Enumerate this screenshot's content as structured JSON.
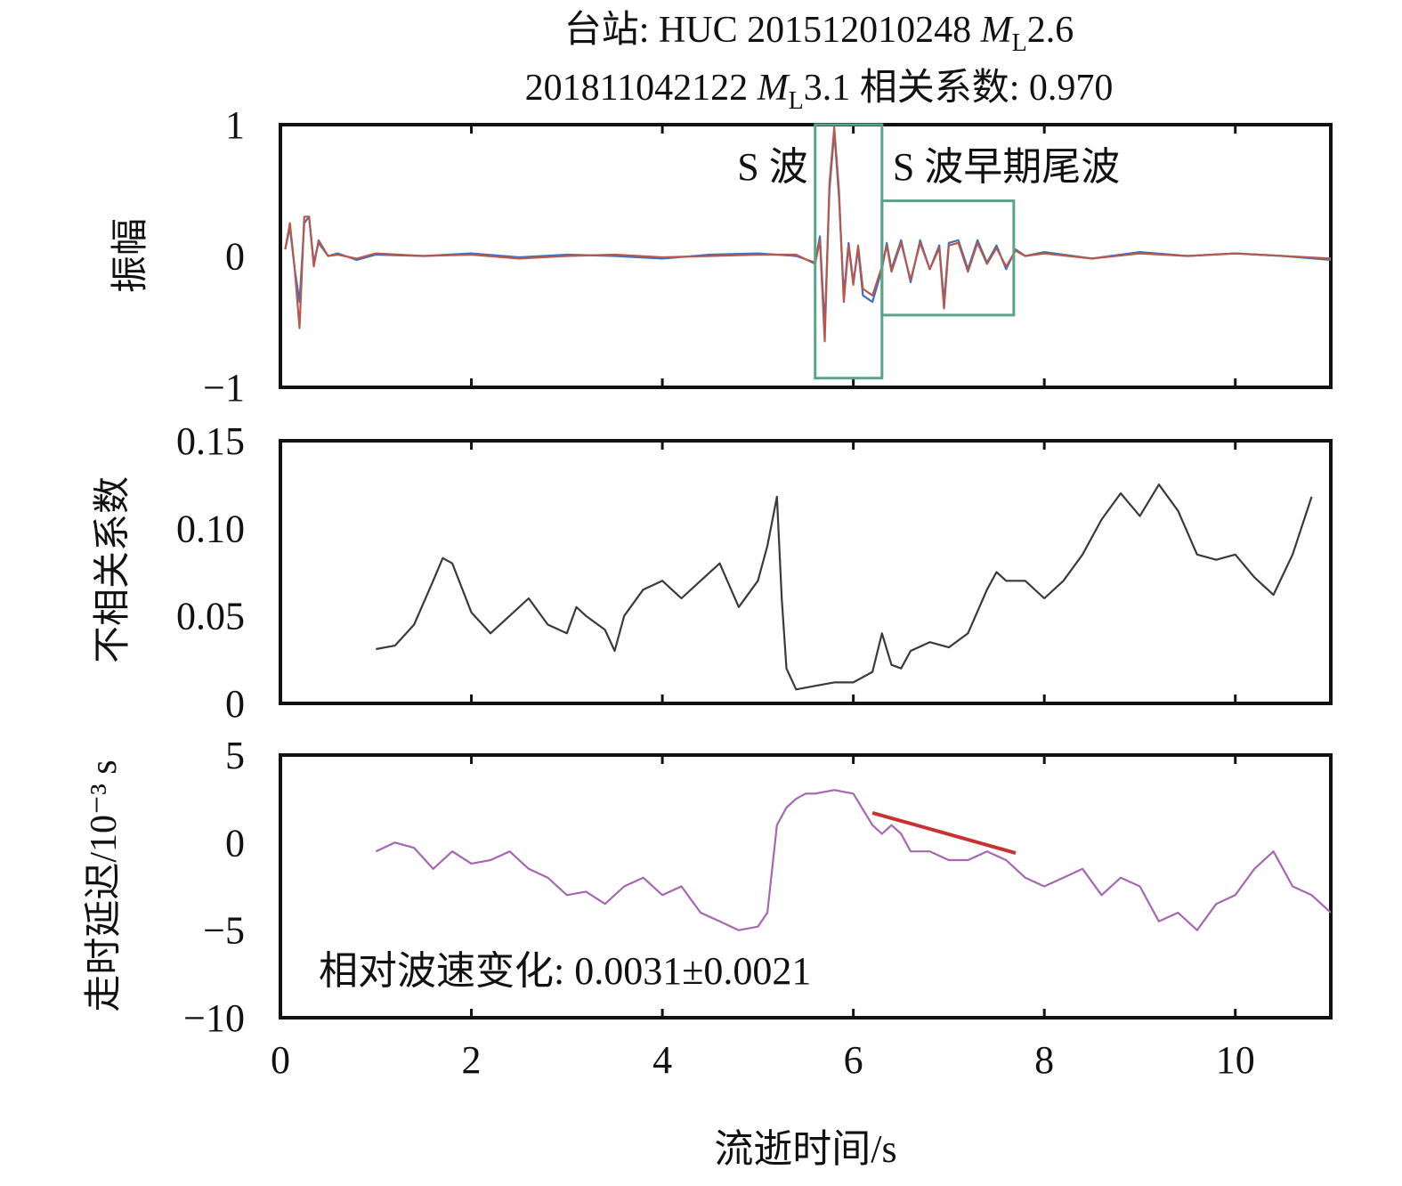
{
  "title": {
    "line1_prefix": "台站: HUC 201512010248 ",
    "line1_M": "M",
    "line1_sub": "L",
    "line1_val": "2.6",
    "line2_prefix": "201811042122 ",
    "line2_M": "M",
    "line2_sub": "L",
    "line2_val": "3.1 相关系数: 0.970"
  },
  "xlabel": "流逝时间/s",
  "chart_data": [
    {
      "type": "line",
      "ylabel": "振幅",
      "xlim": [
        0,
        11
      ],
      "ylim": [
        -1,
        1
      ],
      "yticks": [
        1,
        0,
        -1
      ],
      "ytick_labels": [
        "1",
        "0",
        "−1"
      ],
      "xticks": [
        0,
        2,
        4,
        6,
        8,
        10
      ],
      "annotations": [
        {
          "text": "S 波",
          "x_range": [
            5.6,
            6.3
          ],
          "y_range": [
            -0.93,
            1.0
          ]
        },
        {
          "text": "S 波早期尾波",
          "x_range": [
            6.3,
            7.68
          ],
          "y_range": [
            -0.45,
            0.42
          ]
        }
      ],
      "series": [
        {
          "color": "#3d6fc4",
          "x": [
            0.05,
            0.1,
            0.15,
            0.2,
            0.25,
            0.3,
            0.35,
            0.4,
            0.5,
            0.6,
            0.8,
            1.0,
            1.5,
            2.0,
            2.5,
            3.0,
            3.5,
            4.0,
            4.5,
            5.0,
            5.4,
            5.6,
            5.65,
            5.7,
            5.75,
            5.8,
            5.85,
            5.9,
            5.95,
            6.0,
            6.05,
            6.1,
            6.2,
            6.3,
            6.35,
            6.4,
            6.5,
            6.6,
            6.7,
            6.8,
            6.9,
            6.95,
            7.0,
            7.1,
            7.2,
            7.3,
            7.4,
            7.5,
            7.6,
            7.7,
            7.8,
            8.0,
            8.5,
            9.0,
            9.5,
            10.0,
            10.5,
            11.0
          ],
          "y": [
            0.05,
            0.22,
            -0.1,
            -0.35,
            0.25,
            0.3,
            -0.05,
            0.1,
            0.0,
            0.02,
            -0.03,
            0.01,
            0.0,
            0.02,
            -0.01,
            0.01,
            0.0,
            -0.02,
            0.01,
            0.02,
            0.0,
            -0.05,
            0.15,
            -0.55,
            0.5,
            0.95,
            0.45,
            -0.3,
            0.1,
            -0.2,
            0.05,
            -0.3,
            -0.35,
            -0.1,
            0.1,
            -0.1,
            0.12,
            -0.2,
            0.12,
            -0.1,
            0.08,
            -0.35,
            0.1,
            0.12,
            -0.1,
            0.12,
            -0.05,
            0.08,
            -0.1,
            0.05,
            0.0,
            0.03,
            -0.02,
            0.03,
            0.0,
            0.02,
            0.0,
            -0.03
          ]
        },
        {
          "color": "#b5594f",
          "x": [
            0.05,
            0.1,
            0.15,
            0.2,
            0.25,
            0.3,
            0.35,
            0.4,
            0.5,
            0.6,
            0.8,
            1.0,
            1.5,
            2.0,
            2.5,
            3.0,
            3.5,
            4.0,
            4.5,
            5.0,
            5.4,
            5.6,
            5.65,
            5.7,
            5.75,
            5.8,
            5.85,
            5.9,
            5.95,
            6.0,
            6.05,
            6.1,
            6.2,
            6.3,
            6.35,
            6.4,
            6.5,
            6.6,
            6.7,
            6.8,
            6.9,
            6.95,
            7.0,
            7.1,
            7.2,
            7.3,
            7.4,
            7.5,
            7.6,
            7.7,
            7.8,
            8.0,
            8.5,
            9.0,
            9.5,
            10.0,
            10.5,
            11.0
          ],
          "y": [
            0.05,
            0.25,
            -0.1,
            -0.55,
            0.3,
            0.3,
            -0.08,
            0.12,
            0.0,
            0.01,
            -0.02,
            0.02,
            0.0,
            0.01,
            -0.02,
            0.0,
            0.01,
            -0.01,
            0.0,
            0.01,
            0.01,
            -0.06,
            0.12,
            -0.65,
            0.55,
            0.98,
            0.5,
            -0.35,
            0.08,
            -0.22,
            0.08,
            -0.25,
            -0.3,
            -0.08,
            0.08,
            -0.12,
            0.1,
            -0.18,
            0.1,
            -0.1,
            0.06,
            -0.4,
            0.08,
            0.1,
            -0.12,
            0.1,
            -0.06,
            0.06,
            -0.08,
            0.04,
            0.0,
            0.02,
            -0.02,
            0.02,
            0.0,
            0.02,
            0.0,
            -0.02
          ]
        }
      ]
    },
    {
      "type": "line",
      "ylabel": "不相关系数",
      "xlim": [
        0,
        11
      ],
      "ylim": [
        0,
        0.15
      ],
      "yticks": [
        0.15,
        0.1,
        0.05,
        0
      ],
      "ytick_labels": [
        "0.15",
        "0.10",
        "0.05",
        "0"
      ],
      "xticks": [
        0,
        2,
        4,
        6,
        8,
        10
      ],
      "series": [
        {
          "color": "#3a3a3a",
          "x": [
            1.0,
            1.2,
            1.4,
            1.6,
            1.7,
            1.8,
            2.0,
            2.2,
            2.4,
            2.6,
            2.8,
            3.0,
            3.1,
            3.2,
            3.4,
            3.5,
            3.6,
            3.8,
            4.0,
            4.2,
            4.4,
            4.6,
            4.8,
            5.0,
            5.1,
            5.2,
            5.25,
            5.3,
            5.4,
            5.6,
            5.8,
            6.0,
            6.2,
            6.3,
            6.4,
            6.5,
            6.6,
            6.8,
            7.0,
            7.2,
            7.4,
            7.5,
            7.6,
            7.8,
            8.0,
            8.2,
            8.4,
            8.6,
            8.8,
            9.0,
            9.2,
            9.4,
            9.6,
            9.8,
            10.0,
            10.2,
            10.4,
            10.6,
            10.8
          ],
          "y": [
            0.031,
            0.033,
            0.045,
            0.07,
            0.083,
            0.08,
            0.052,
            0.04,
            0.05,
            0.06,
            0.045,
            0.04,
            0.055,
            0.05,
            0.042,
            0.03,
            0.05,
            0.065,
            0.07,
            0.06,
            0.07,
            0.08,
            0.055,
            0.07,
            0.09,
            0.118,
            0.06,
            0.02,
            0.008,
            0.01,
            0.012,
            0.012,
            0.018,
            0.04,
            0.022,
            0.02,
            0.03,
            0.035,
            0.032,
            0.04,
            0.065,
            0.075,
            0.07,
            0.07,
            0.06,
            0.07,
            0.085,
            0.105,
            0.12,
            0.107,
            0.125,
            0.11,
            0.085,
            0.082,
            0.085,
            0.072,
            0.062,
            0.085,
            0.118
          ]
        }
      ]
    },
    {
      "type": "line",
      "ylabel": "走时延迟/10⁻³ s",
      "xlim": [
        0,
        11
      ],
      "ylim": [
        -10,
        5
      ],
      "yticks": [
        5,
        0,
        -5,
        -10
      ],
      "ytick_labels": [
        "5",
        "0",
        "−5",
        "−10"
      ],
      "xticks": [
        0,
        2,
        4,
        6,
        8,
        10
      ],
      "xtick_labels": [
        "0",
        "2",
        "4",
        "6",
        "8",
        "10"
      ],
      "annotation": "相对波速变化: 0.0031±0.0021",
      "series": [
        {
          "color": "#a567b2",
          "x": [
            1.0,
            1.2,
            1.4,
            1.6,
            1.8,
            2.0,
            2.2,
            2.4,
            2.6,
            2.8,
            3.0,
            3.2,
            3.4,
            3.6,
            3.8,
            4.0,
            4.2,
            4.4,
            4.6,
            4.8,
            5.0,
            5.1,
            5.2,
            5.3,
            5.4,
            5.5,
            5.6,
            5.8,
            6.0,
            6.2,
            6.3,
            6.4,
            6.5,
            6.6,
            6.8,
            7.0,
            7.2,
            7.4,
            7.6,
            7.8,
            8.0,
            8.2,
            8.4,
            8.6,
            8.8,
            9.0,
            9.2,
            9.4,
            9.6,
            9.8,
            10.0,
            10.2,
            10.4,
            10.6,
            10.8,
            11.0
          ],
          "y": [
            -0.5,
            0.0,
            -0.3,
            -1.5,
            -0.5,
            -1.2,
            -1.0,
            -0.5,
            -1.5,
            -2.0,
            -3.0,
            -2.8,
            -3.5,
            -2.5,
            -2.0,
            -3.0,
            -2.5,
            -4.0,
            -4.5,
            -5.0,
            -4.8,
            -4.0,
            1.0,
            2.0,
            2.5,
            2.8,
            2.8,
            3.0,
            2.8,
            1.0,
            0.5,
            1.0,
            0.5,
            -0.5,
            -0.5,
            -1.0,
            -1.0,
            -0.5,
            -1.0,
            -2.0,
            -2.5,
            -2.0,
            -1.5,
            -3.0,
            -2.0,
            -2.5,
            -4.5,
            -4.0,
            -5.0,
            -3.5,
            -3.0,
            -1.5,
            -0.5,
            -2.5,
            -3.0,
            -4.0
          ]
        },
        {
          "color": "#c83232",
          "x": [
            6.2,
            7.7
          ],
          "y": [
            1.7,
            -0.6
          ]
        }
      ]
    }
  ]
}
